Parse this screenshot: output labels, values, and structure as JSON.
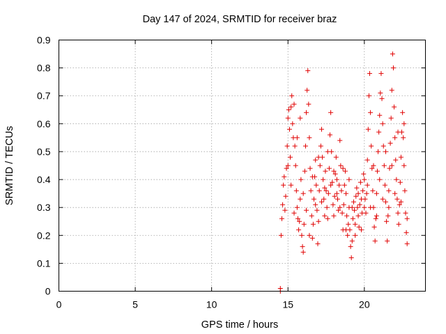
{
  "chart_data": {
    "type": "scatter",
    "title": "Day 147 of 2024, SRMTID for receiver braz",
    "xlabel": "GPS time / hours",
    "ylabel": "SRMTID / TECUs",
    "xlim": [
      0,
      24
    ],
    "ylim": [
      0,
      0.9
    ],
    "xticks": [
      0,
      5,
      10,
      15,
      20
    ],
    "xtick_labels": [
      "0",
      "5",
      "10",
      "15",
      "20"
    ],
    "yticks": [
      0,
      0.1,
      0.2,
      0.3,
      0.4,
      0.5,
      0.6,
      0.7,
      0.8,
      0.9
    ],
    "ytick_labels": [
      "0",
      "0.1",
      "0.2",
      "0.3",
      "0.4",
      "0.5",
      "0.6",
      "0.7",
      "0.8",
      "0.9"
    ],
    "grid": true,
    "marker": "+",
    "color": "#e00000",
    "series": [
      {
        "name": "SRMTID",
        "points": [
          [
            14.5,
            0.0
          ],
          [
            14.5,
            0.01
          ],
          [
            14.55,
            0.2
          ],
          [
            14.6,
            0.26
          ],
          [
            14.65,
            0.31
          ],
          [
            14.7,
            0.38
          ],
          [
            14.75,
            0.41
          ],
          [
            14.8,
            0.29
          ],
          [
            14.85,
            0.34
          ],
          [
            14.9,
            0.44
          ],
          [
            14.95,
            0.52
          ],
          [
            15.0,
            0.62
          ],
          [
            15.05,
            0.65
          ],
          [
            15.1,
            0.58
          ],
          [
            15.15,
            0.48
          ],
          [
            15.2,
            0.66
          ],
          [
            15.25,
            0.7
          ],
          [
            15.3,
            0.6
          ],
          [
            15.35,
            0.55
          ],
          [
            15.4,
            0.67
          ],
          [
            15.45,
            0.52
          ],
          [
            15.5,
            0.45
          ],
          [
            15.55,
            0.36
          ],
          [
            15.6,
            0.3
          ],
          [
            15.65,
            0.26
          ],
          [
            15.7,
            0.22
          ],
          [
            15.75,
            0.25
          ],
          [
            15.8,
            0.33
          ],
          [
            15.85,
            0.4
          ],
          [
            15.9,
            0.2
          ],
          [
            15.95,
            0.16
          ],
          [
            16.0,
            0.14
          ],
          [
            16.05,
            0.24
          ],
          [
            16.1,
            0.43
          ],
          [
            16.15,
            0.52
          ],
          [
            16.2,
            0.64
          ],
          [
            16.25,
            0.72
          ],
          [
            16.3,
            0.79
          ],
          [
            16.35,
            0.67
          ],
          [
            16.4,
            0.55
          ],
          [
            16.45,
            0.44
          ],
          [
            16.5,
            0.36
          ],
          [
            16.55,
            0.27
          ],
          [
            16.6,
            0.19
          ],
          [
            16.65,
            0.24
          ],
          [
            16.7,
            0.33
          ],
          [
            16.75,
            0.41
          ],
          [
            16.8,
            0.47
          ],
          [
            16.85,
            0.38
          ],
          [
            16.9,
            0.29
          ],
          [
            16.95,
            0.17
          ],
          [
            17.0,
            0.25
          ],
          [
            17.05,
            0.36
          ],
          [
            17.1,
            0.45
          ],
          [
            17.15,
            0.52
          ],
          [
            17.2,
            0.58
          ],
          [
            17.25,
            0.48
          ],
          [
            17.3,
            0.4
          ],
          [
            17.35,
            0.33
          ],
          [
            17.4,
            0.37
          ],
          [
            17.45,
            0.43
          ],
          [
            17.5,
            0.36
          ],
          [
            17.55,
            0.3
          ],
          [
            17.6,
            0.26
          ],
          [
            17.65,
            0.35
          ],
          [
            17.7,
            0.44
          ],
          [
            17.75,
            0.56
          ],
          [
            17.8,
            0.64
          ],
          [
            17.85,
            0.5
          ],
          [
            17.9,
            0.39
          ],
          [
            17.95,
            0.31
          ],
          [
            18.0,
            0.27
          ],
          [
            18.05,
            0.34
          ],
          [
            18.1,
            0.42
          ],
          [
            18.15,
            0.48
          ],
          [
            18.2,
            0.4
          ],
          [
            18.25,
            0.33
          ],
          [
            18.3,
            0.29
          ],
          [
            18.35,
            0.38
          ],
          [
            18.4,
            0.54
          ],
          [
            18.45,
            0.45
          ],
          [
            18.5,
            0.36
          ],
          [
            18.55,
            0.28
          ],
          [
            18.6,
            0.22
          ],
          [
            18.65,
            0.31
          ],
          [
            18.7,
            0.38
          ],
          [
            18.75,
            0.43
          ],
          [
            18.8,
            0.35
          ],
          [
            18.85,
            0.27
          ],
          [
            18.9,
            0.2
          ],
          [
            18.95,
            0.24
          ],
          [
            19.0,
            0.3
          ],
          [
            19.05,
            0.22
          ],
          [
            19.1,
            0.16
          ],
          [
            19.15,
            0.12
          ],
          [
            19.2,
            0.18
          ],
          [
            19.25,
            0.26
          ],
          [
            19.3,
            0.32
          ],
          [
            19.35,
            0.29
          ],
          [
            19.4,
            0.24
          ],
          [
            19.45,
            0.34
          ],
          [
            19.5,
            0.37
          ],
          [
            19.55,
            0.3
          ],
          [
            19.6,
            0.27
          ],
          [
            19.65,
            0.23
          ],
          [
            19.7,
            0.31
          ],
          [
            19.75,
            0.39
          ],
          [
            19.8,
            0.33
          ],
          [
            19.85,
            0.28
          ],
          [
            19.9,
            0.36
          ],
          [
            19.95,
            0.42
          ],
          [
            20.0,
            0.4
          ],
          [
            20.05,
            0.33
          ],
          [
            20.1,
            0.28
          ],
          [
            20.15,
            0.35
          ],
          [
            20.2,
            0.47
          ],
          [
            20.25,
            0.58
          ],
          [
            20.3,
            0.7
          ],
          [
            20.35,
            0.78
          ],
          [
            20.4,
            0.64
          ],
          [
            20.45,
            0.52
          ],
          [
            20.5,
            0.44
          ],
          [
            20.55,
            0.36
          ],
          [
            20.6,
            0.3
          ],
          [
            20.65,
            0.23
          ],
          [
            20.7,
            0.18
          ],
          [
            20.75,
            0.26
          ],
          [
            20.8,
            0.35
          ],
          [
            20.85,
            0.43
          ],
          [
            20.9,
            0.5
          ],
          [
            20.95,
            0.57
          ],
          [
            21.0,
            0.63
          ],
          [
            21.05,
            0.71
          ],
          [
            21.1,
            0.78
          ],
          [
            21.15,
            0.69
          ],
          [
            21.2,
            0.6
          ],
          [
            21.25,
            0.52
          ],
          [
            21.3,
            0.45
          ],
          [
            21.35,
            0.38
          ],
          [
            21.4,
            0.32
          ],
          [
            21.45,
            0.25
          ],
          [
            21.5,
            0.18
          ],
          [
            21.55,
            0.27
          ],
          [
            21.6,
            0.36
          ],
          [
            21.65,
            0.44
          ],
          [
            21.7,
            0.53
          ],
          [
            21.75,
            0.62
          ],
          [
            21.8,
            0.72
          ],
          [
            21.85,
            0.85
          ],
          [
            21.9,
            0.8
          ],
          [
            21.95,
            0.66
          ],
          [
            22.0,
            0.55
          ],
          [
            22.05,
            0.47
          ],
          [
            22.1,
            0.4
          ],
          [
            22.15,
            0.33
          ],
          [
            22.2,
            0.28
          ],
          [
            22.25,
            0.24
          ],
          [
            22.3,
            0.31
          ],
          [
            22.35,
            0.39
          ],
          [
            22.4,
            0.48
          ],
          [
            22.45,
            0.57
          ],
          [
            22.5,
            0.64
          ],
          [
            22.55,
            0.55
          ],
          [
            22.6,
            0.45
          ],
          [
            22.65,
            0.36
          ],
          [
            22.7,
            0.28
          ],
          [
            22.75,
            0.21
          ],
          [
            22.8,
            0.17
          ],
          [
            15.0,
            0.45
          ],
          [
            15.2,
            0.38
          ],
          [
            15.4,
            0.28
          ],
          [
            15.6,
            0.55
          ],
          [
            15.8,
            0.62
          ],
          [
            16.0,
            0.35
          ],
          [
            16.2,
            0.29
          ],
          [
            16.4,
            0.2
          ],
          [
            16.6,
            0.41
          ],
          [
            16.8,
            0.31
          ],
          [
            17.0,
            0.48
          ],
          [
            17.2,
            0.32
          ],
          [
            17.4,
            0.27
          ],
          [
            17.6,
            0.5
          ],
          [
            17.8,
            0.38
          ],
          [
            18.0,
            0.43
          ],
          [
            18.2,
            0.35
          ],
          [
            18.4,
            0.3
          ],
          [
            18.6,
            0.44
          ],
          [
            18.8,
            0.22
          ],
          [
            19.0,
            0.4
          ],
          [
            19.2,
            0.3
          ],
          [
            19.4,
            0.2
          ],
          [
            19.6,
            0.35
          ],
          [
            19.8,
            0.22
          ],
          [
            20.0,
            0.3
          ],
          [
            20.2,
            0.38
          ],
          [
            20.4,
            0.3
          ],
          [
            20.6,
            0.45
          ],
          [
            20.8,
            0.27
          ],
          [
            21.0,
            0.4
          ],
          [
            21.2,
            0.33
          ],
          [
            21.4,
            0.5
          ],
          [
            21.6,
            0.3
          ],
          [
            21.8,
            0.45
          ],
          [
            22.0,
            0.35
          ],
          [
            22.2,
            0.57
          ],
          [
            22.4,
            0.32
          ],
          [
            22.6,
            0.6
          ],
          [
            22.8,
            0.26
          ]
        ]
      }
    ]
  }
}
